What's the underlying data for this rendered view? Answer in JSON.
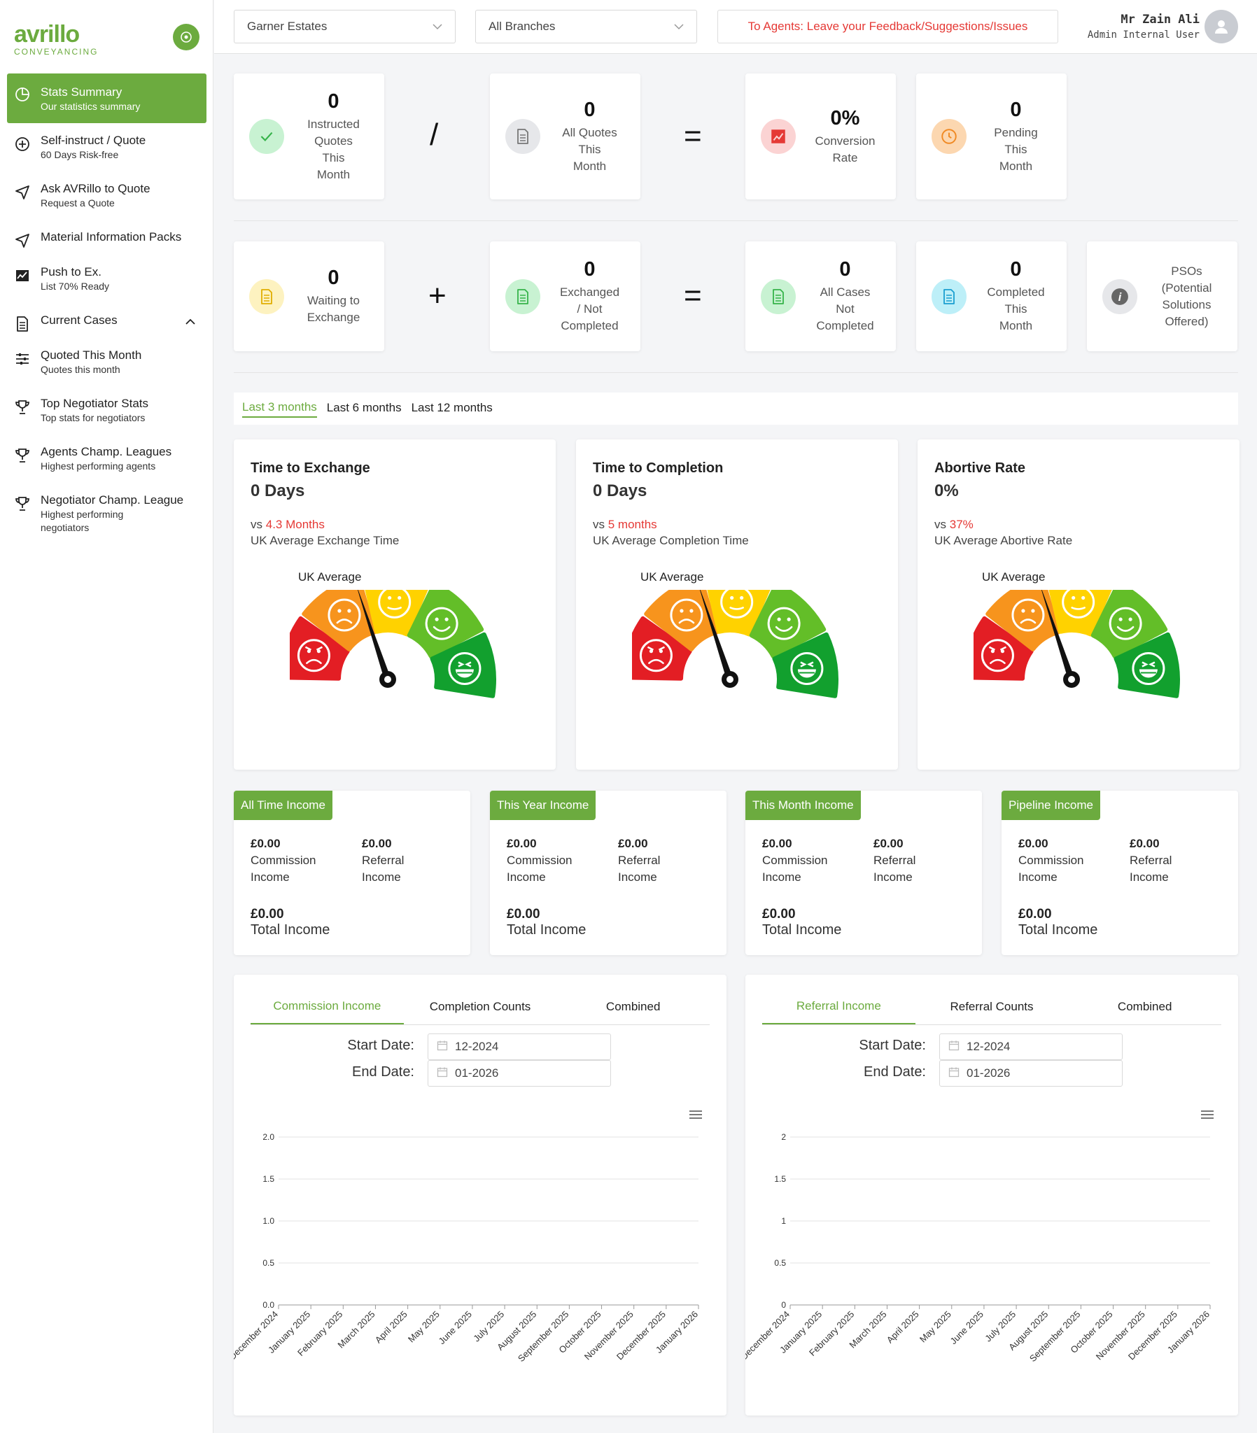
{
  "brand": {
    "name": "avrillo",
    "sub": "CONVEYANCING"
  },
  "sidebar": {
    "items": [
      {
        "title": "Stats Summary",
        "sub": "Our statistics summary",
        "icon": "pie-chart-icon",
        "active": true
      },
      {
        "title": "Self-instruct / Quote",
        "sub": "60 Days Risk-free",
        "icon": "plus-circle-icon"
      },
      {
        "title": "Ask AVRillo to Quote",
        "sub": "Request a Quote",
        "icon": "send-icon"
      },
      {
        "title": "Material Information Packs",
        "sub": "",
        "icon": "send-icon"
      },
      {
        "title": "Push to Ex.",
        "sub": "List 70% Ready",
        "icon": "line-chart-icon"
      },
      {
        "title": "Current Cases",
        "sub": "",
        "icon": "document-icon",
        "chevron": "up"
      },
      {
        "title": "Quoted This Month",
        "sub": "Quotes this month",
        "icon": "sliders-icon"
      },
      {
        "title": "Top Negotiator Stats",
        "sub": "Top stats for negotiators",
        "icon": "trophy-icon"
      },
      {
        "title": "Agents Champ. Leagues",
        "sub": "Highest performing agents",
        "icon": "trophy-icon"
      },
      {
        "title": "Negotiator Champ. League",
        "sub": "Highest performing\nnegotiators",
        "icon": "trophy-icon"
      }
    ]
  },
  "header": {
    "agency": "Garner Estates",
    "branch": "All Branches",
    "feedback": "To Agents: Leave your Feedback/Suggestions/Issues",
    "user_name": "Mr Zain Ali",
    "user_role": "Admin Internal User"
  },
  "stats_row1": [
    {
      "value": "0",
      "label": "Instructed\nQuotes\nThis\nMonth",
      "icon": "check-icon",
      "color": "#c8f2d2"
    },
    {
      "value": "0",
      "label": "All Quotes\nThis\nMonth",
      "icon": "document-icon",
      "color": "#e6e7ea"
    },
    {
      "value": "0%",
      "label": "Conversion\nRate",
      "icon": "trend-icon",
      "color": "#fbd3d3"
    },
    {
      "value": "0",
      "label": "Pending\nThis\nMonth",
      "icon": "clock-icon",
      "color": "#fcd7b0"
    }
  ],
  "ops_row1": [
    "/",
    "="
  ],
  "stats_row2": [
    {
      "value": "0",
      "label": "Waiting to\nExchange",
      "icon": "document-icon",
      "color": "#fdf2c0"
    },
    {
      "value": "0",
      "label": "Exchanged\n/ Not\nCompleted",
      "icon": "document-icon",
      "color": "#c8f2d2"
    },
    {
      "value": "0",
      "label": "All Cases\nNot\nCompleted",
      "icon": "document-icon",
      "color": "#c8f2d2"
    },
    {
      "value": "0",
      "label": "Completed\nThis\nMonth",
      "icon": "document-icon",
      "color": "#bdeff8"
    },
    {
      "value": "",
      "label": "PSOs\n(Potential\nSolutions\nOffered)",
      "icon": "info-icon",
      "color": "#e6e7ea"
    }
  ],
  "ops_row2": [
    "+",
    "="
  ],
  "range_tabs": [
    "Last 3 months",
    "Last 6 months",
    "Last 12 months"
  ],
  "gauges": [
    {
      "title": "Time to Exchange",
      "value": "0 Days",
      "vs": "vs",
      "vs_value": "4.3 Months",
      "sub": "UK Average Exchange Time",
      "uk": "UK Average"
    },
    {
      "title": "Time to Completion",
      "value": "0 Days",
      "vs": "vs",
      "vs_value": "5 months",
      "sub": "UK Average Completion Time",
      "uk": "UK Average"
    },
    {
      "title": "Abortive Rate",
      "value": "0%",
      "vs": "vs",
      "vs_value": "37%",
      "sub": "UK Average Abortive Rate",
      "uk": "UK Average"
    }
  ],
  "gauge_colors": [
    "#e31e24",
    "#f7941d",
    "#ffd200",
    "#63be28",
    "#12a02e"
  ],
  "income": [
    {
      "tag": "All Time Income",
      "commission": "£0.00",
      "commission_label": "Commission\nIncome",
      "referral": "£0.00",
      "referral_label": "Referral\nIncome",
      "total": "£0.00",
      "total_label": "Total Income"
    },
    {
      "tag": "This Year Income",
      "commission": "£0.00",
      "commission_label": "Commission\nIncome",
      "referral": "£0.00",
      "referral_label": "Referral\nIncome",
      "total": "£0.00",
      "total_label": "Total Income"
    },
    {
      "tag": "This Month Income",
      "commission": "£0.00",
      "commission_label": "Commission\nIncome",
      "referral": "£0.00",
      "referral_label": "Referral\nIncome",
      "total": "£0.00",
      "total_label": "Total Income"
    },
    {
      "tag": "Pipeline Income",
      "commission": "£0.00",
      "commission_label": "Commission\nIncome",
      "referral": "£0.00",
      "referral_label": "Referral\nIncome",
      "total": "£0.00",
      "total_label": "Total Income"
    }
  ],
  "chart_panels": [
    {
      "tabs": [
        "Commission Income",
        "Completion Counts",
        "Combined"
      ],
      "start_label": "Start Date:",
      "start": "12-2024",
      "end_label": "End Date:",
      "end": "01-2026"
    },
    {
      "tabs": [
        "Referral Income",
        "Referral Counts",
        "Combined"
      ],
      "start_label": "Start Date:",
      "start": "12-2024",
      "end_label": "End Date:",
      "end": "01-2026"
    }
  ],
  "chart_data": [
    {
      "type": "line",
      "categories": [
        "December 2024",
        "January 2025",
        "February 2025",
        "March 2025",
        "April 2025",
        "May 2025",
        "June 2025",
        "July 2025",
        "August 2025",
        "September 2025",
        "October 2025",
        "November 2025",
        "December 2025",
        "January 2026"
      ],
      "ytick_labels": [
        "0.0",
        "0.5",
        "1.0",
        "1.5",
        "2.0"
      ],
      "ylim": [
        0,
        2
      ],
      "series": []
    },
    {
      "type": "line",
      "categories": [
        "December 2024",
        "January 2025",
        "February 2025",
        "March 2025",
        "April 2025",
        "May 2025",
        "June 2025",
        "July 2025",
        "August 2025",
        "September 2025",
        "October 2025",
        "November 2025",
        "December 2025",
        "January 2026"
      ],
      "ytick_labels": [
        "0",
        "0.5",
        "1",
        "1.5",
        "2"
      ],
      "ylim": [
        0,
        2
      ],
      "series": []
    }
  ]
}
